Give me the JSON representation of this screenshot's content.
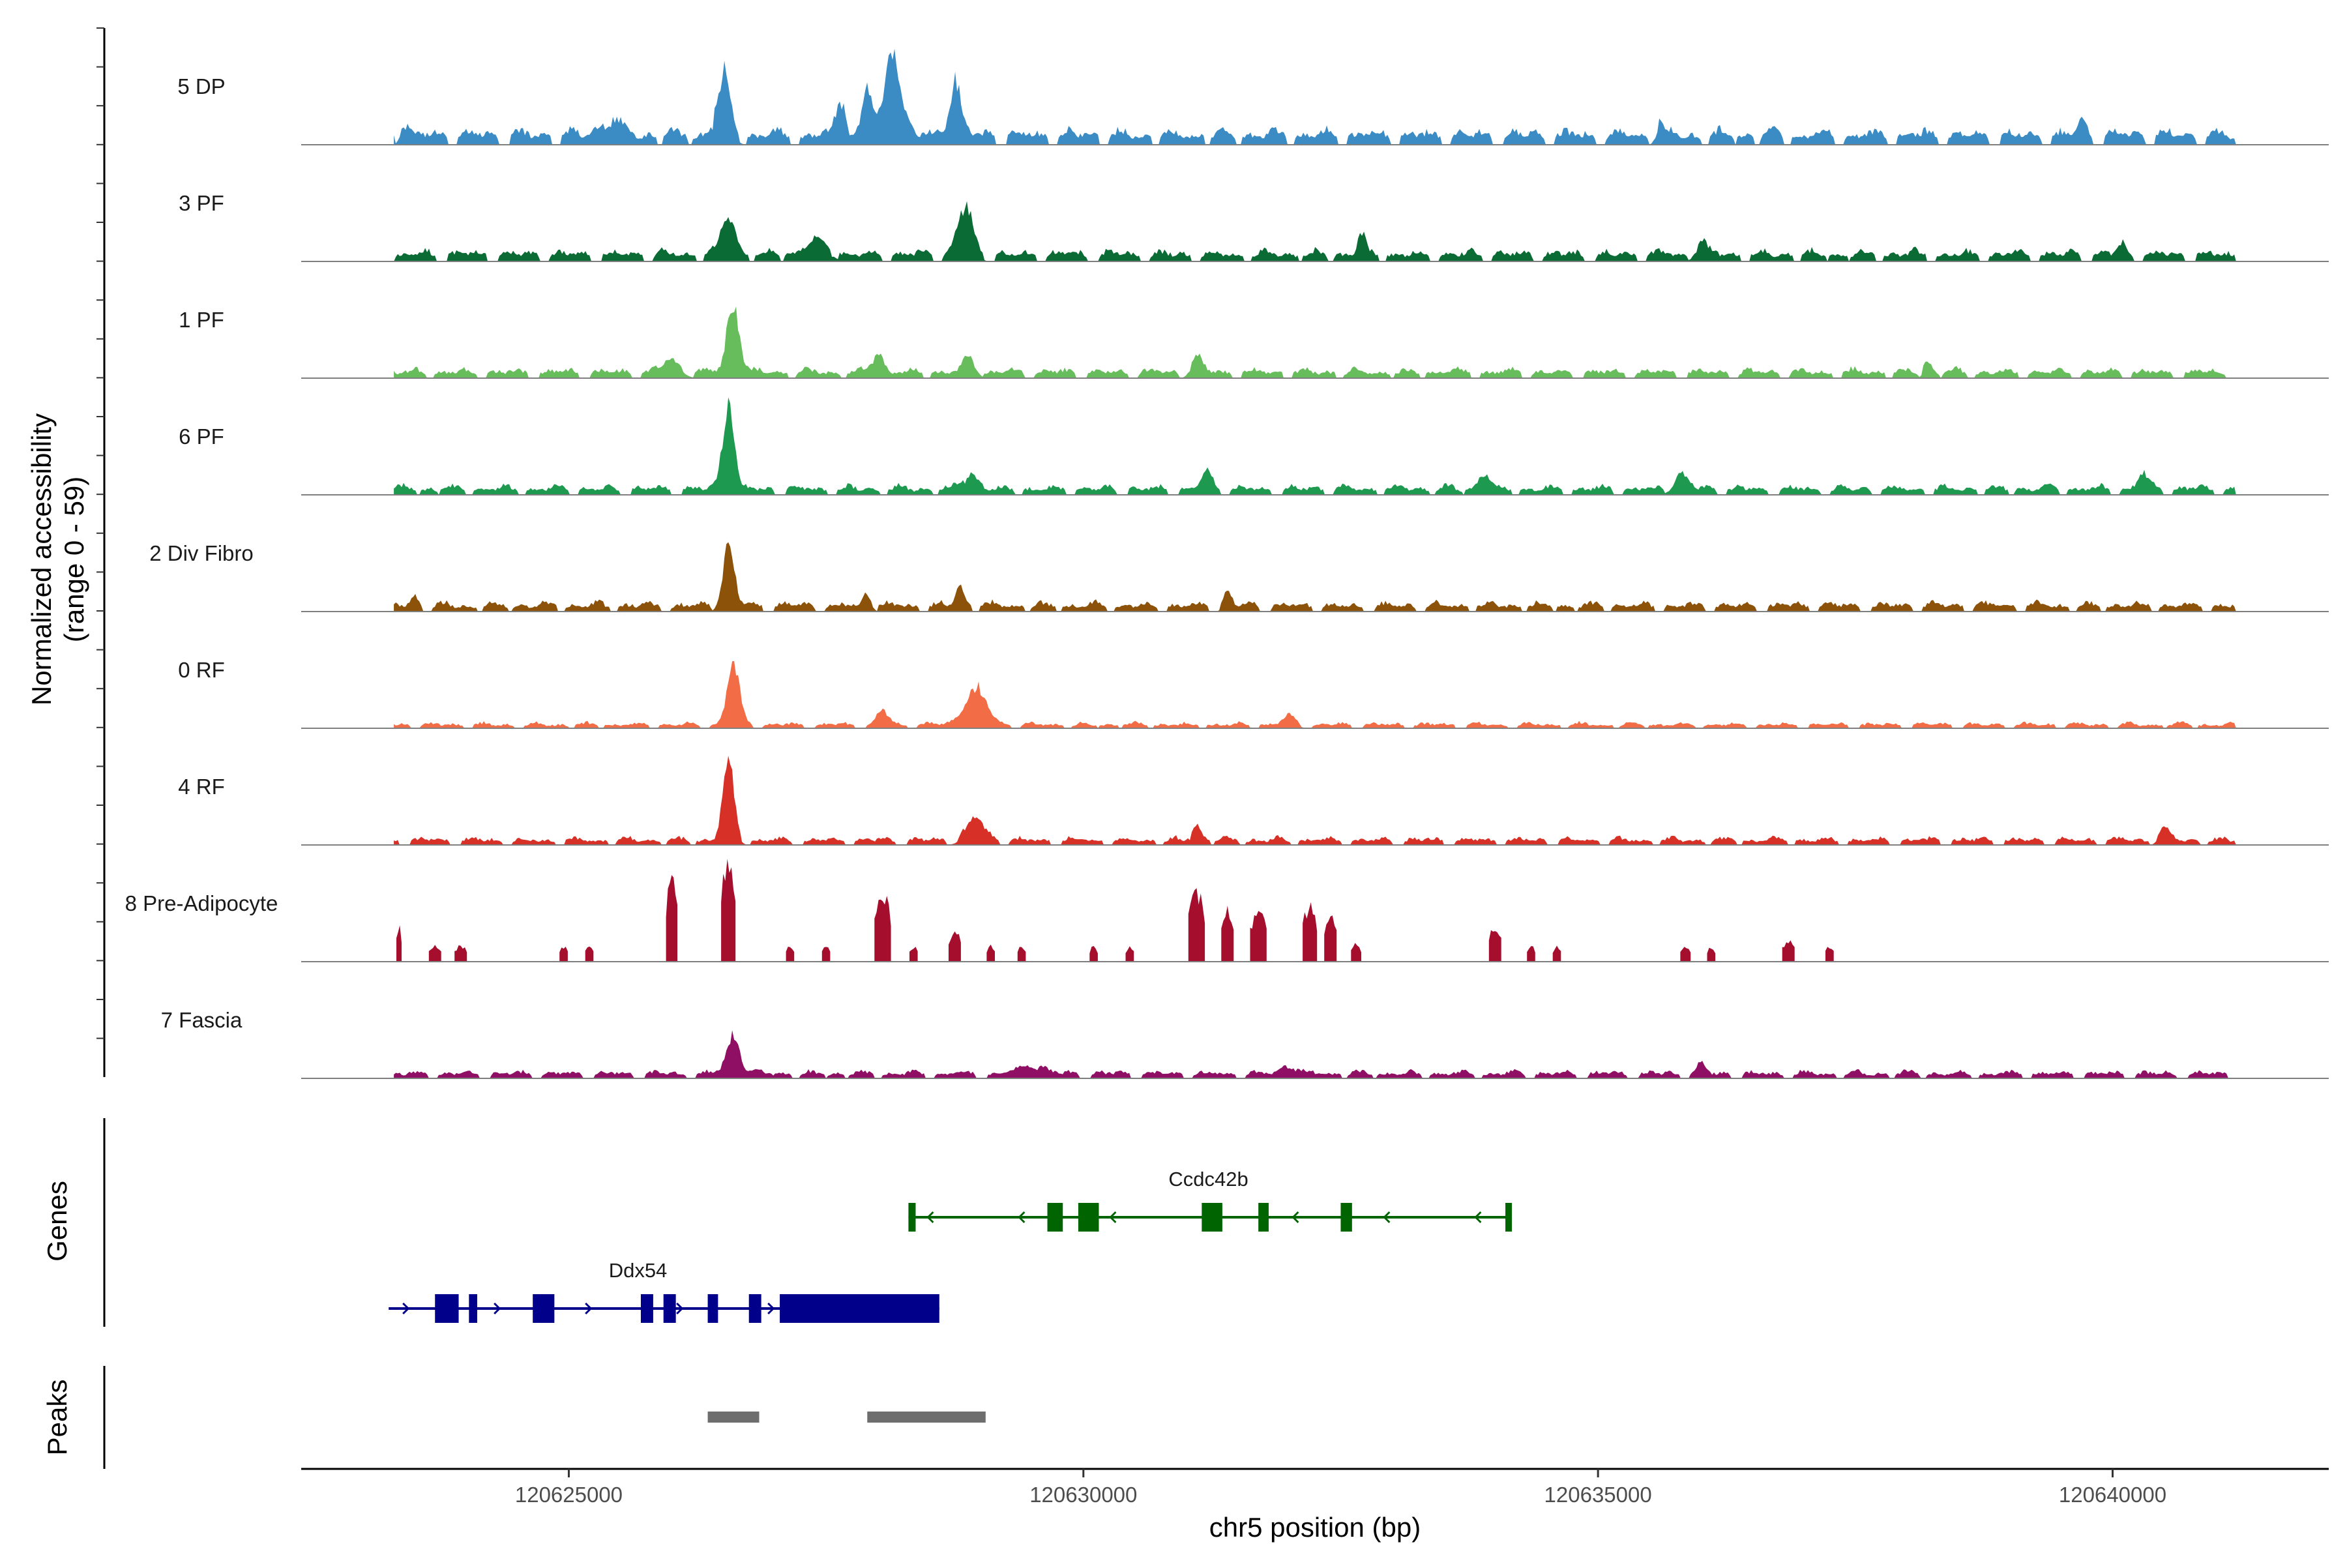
{
  "chart_data": {
    "type": "area",
    "ylabel": "Normalized accessibility",
    "ylabel_range": "(range 0 - 59)",
    "yrange": [
      0,
      59
    ],
    "xlabel": "chr5 position (bp)",
    "xlim": [
      120622400,
      120642100
    ],
    "xticks": [
      120625000,
      120630000,
      120635000,
      120640000
    ],
    "xtick_labels": [
      "120625000",
      "120630000",
      "120635000",
      "120640000"
    ],
    "data_start": 120623300,
    "data_end": 120641200,
    "genes_label": "Genes",
    "peaks_label": "Peaks",
    "series": [
      {
        "name": "5 DP",
        "color": "#3b8bc4",
        "baseline": 8,
        "peaks": [
          [
            120623400,
            10,
            60
          ],
          [
            120626500,
            32,
            110
          ],
          [
            120627650,
            22,
            80
          ],
          [
            120627900,
            25,
            80
          ],
          [
            120628150,
            48,
            130
          ],
          [
            120628750,
            32,
            90
          ],
          [
            120625400,
            10,
            150
          ],
          [
            120635600,
            9,
            60
          ],
          [
            120639700,
            8,
            70
          ]
        ]
      },
      {
        "name": "3 PF",
        "color": "#0b6b35",
        "baseline": 6,
        "peaks": [
          [
            120626550,
            22,
            110
          ],
          [
            120628850,
            26,
            120
          ],
          [
            120632700,
            11,
            60
          ],
          [
            120636000,
            8,
            90
          ],
          [
            120627400,
            7,
            200
          ],
          [
            120640100,
            6,
            60
          ]
        ]
      },
      {
        "name": "1 PF",
        "color": "#67bd5c",
        "baseline": 5,
        "peaks": [
          [
            120626600,
            40,
            100
          ],
          [
            120628000,
            12,
            90
          ],
          [
            120628900,
            9,
            90
          ],
          [
            120631100,
            9,
            90
          ],
          [
            120626000,
            7,
            150
          ],
          [
            120638200,
            7,
            60
          ]
        ]
      },
      {
        "name": "6 PF",
        "color": "#1e9a50",
        "baseline": 5,
        "peaks": [
          [
            120626550,
            50,
            90
          ],
          [
            120628900,
            9,
            120
          ],
          [
            120631200,
            9,
            90
          ],
          [
            120633900,
            9,
            90
          ],
          [
            120635800,
            10,
            110
          ],
          [
            120640300,
            8,
            90
          ]
        ]
      },
      {
        "name": "2 Div Fibro",
        "color": "#8c520a",
        "baseline": 5,
        "peaks": [
          [
            120626550,
            35,
            90
          ],
          [
            120628800,
            12,
            70
          ],
          [
            120627900,
            9,
            60
          ],
          [
            120631400,
            8,
            60
          ],
          [
            120623500,
            6,
            60
          ]
        ]
      },
      {
        "name": "0 RF",
        "color": "#f26c45",
        "baseline": 3,
        "peaks": [
          [
            120626600,
            32,
            100
          ],
          [
            120628950,
            20,
            180
          ],
          [
            120628050,
            8,
            90
          ],
          [
            120632000,
            5,
            100
          ]
        ]
      },
      {
        "name": "4 RF",
        "color": "#d73027",
        "baseline": 4,
        "peaks": [
          [
            120626550,
            42,
            90
          ],
          [
            120628950,
            12,
            150
          ],
          [
            120631100,
            8,
            80
          ],
          [
            120640500,
            7,
            80
          ]
        ]
      },
      {
        "name": "8 Pre-Adipocyte",
        "color": "#a50f2d",
        "baseline": 0,
        "blocks": [
          [
            120623350,
            20,
            40
          ],
          [
            120623700,
            9,
            120
          ],
          [
            120623950,
            9,
            120
          ],
          [
            120624950,
            9,
            80
          ],
          [
            120625200,
            9,
            80
          ],
          [
            120626000,
            48,
            110
          ],
          [
            120626550,
            58,
            140
          ],
          [
            120627150,
            9,
            80
          ],
          [
            120627500,
            9,
            80
          ],
          [
            120628050,
            38,
            160
          ],
          [
            120628350,
            9,
            80
          ],
          [
            120628750,
            18,
            120
          ],
          [
            120629100,
            9,
            80
          ],
          [
            120629400,
            9,
            80
          ],
          [
            120630100,
            9,
            80
          ],
          [
            120630450,
            9,
            80
          ],
          [
            120631100,
            40,
            160
          ],
          [
            120631400,
            30,
            120
          ],
          [
            120631700,
            28,
            160
          ],
          [
            120632200,
            32,
            140
          ],
          [
            120632400,
            26,
            120
          ],
          [
            120632650,
            10,
            100
          ],
          [
            120634000,
            20,
            120
          ],
          [
            120634350,
            9,
            80
          ],
          [
            120634600,
            9,
            80
          ],
          [
            120635850,
            9,
            100
          ],
          [
            120636100,
            9,
            80
          ],
          [
            120636850,
            12,
            120
          ],
          [
            120637250,
            9,
            80
          ]
        ]
      },
      {
        "name": "7 Fascia",
        "color": "#8e0f64",
        "baseline": 4,
        "peaks": [
          [
            120626600,
            22,
            110
          ],
          [
            120629500,
            6,
            180
          ],
          [
            120632000,
            6,
            120
          ],
          [
            120636000,
            6,
            60
          ]
        ]
      }
    ],
    "genes": [
      {
        "name": "Ccdc42b",
        "strand": "-",
        "color": "#006400",
        "start": 120628300,
        "end": 120634130,
        "exons": [
          [
            120628300,
            120628370
          ],
          [
            120629650,
            120629800
          ],
          [
            120629950,
            120630150
          ],
          [
            120631150,
            120631350
          ],
          [
            120631700,
            120631800
          ],
          [
            120632500,
            120632610
          ],
          [
            120634100,
            120634130
          ]
        ]
      },
      {
        "name": "Ddx54",
        "strand": "+",
        "color": "#00008b",
        "start": 120623250,
        "end": 120628600,
        "exons": [
          [
            120623700,
            120623930
          ],
          [
            120624030,
            120624110
          ],
          [
            120624650,
            120624860
          ],
          [
            120625700,
            120625820
          ],
          [
            120625920,
            120626040
          ],
          [
            120626350,
            120626450
          ],
          [
            120626750,
            120626870
          ],
          [
            120627050,
            120628600
          ]
        ]
      }
    ],
    "peak_regions": [
      [
        120626350,
        120626850
      ],
      [
        120627900,
        120629050
      ]
    ]
  }
}
